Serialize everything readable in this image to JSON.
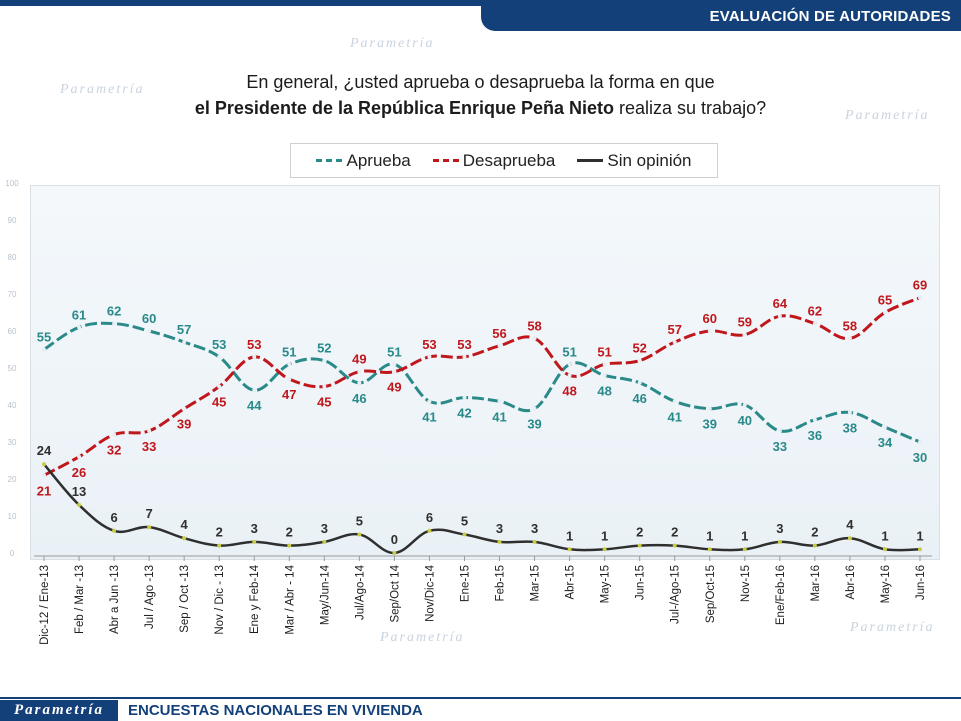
{
  "header": {
    "title": "EVALUACIÓN DE AUTORIDADES"
  },
  "question": {
    "line1": "En general, ¿usted aprueba o desaprueba la forma en que",
    "line2_bold": "el Presidente de la República Enrique Peña Nieto",
    "line2_rest": " realiza su trabajo?"
  },
  "footer": {
    "logo": "Parametría",
    "text": "ENCUESTAS NACIONALES  EN VIVIENDA"
  },
  "chart_data": {
    "type": "line",
    "categories": [
      "Dic-12 / Ene-13",
      "Feb / Mar -13",
      "Abr a Jun -13",
      "Jul / Ago -13",
      "Sep / Oct -13",
      "Nov / Dic - 13",
      "Ene y Feb-14",
      "Mar / Abr - 14",
      "May/Jun-14",
      "Jul/Ago-14",
      "Sep/Oct 14",
      "Nov/Dic-14",
      "Ene-15",
      "Feb-15",
      "Mar-15",
      "Abr-15",
      "May-15",
      "Jun-15",
      "Jul-/Ago-15",
      "Sep/Oct-15",
      "Nov-15",
      "Ene/Feb-16",
      "Mar-16",
      "Abr-16",
      "May-16",
      "Jun-16"
    ],
    "series": [
      {
        "name": "Aprueba",
        "color": "#2a8a8a",
        "values": [
          55,
          61,
          62,
          60,
          57,
          53,
          44,
          51,
          52,
          46,
          51,
          41,
          42,
          41,
          39,
          51,
          48,
          46,
          41,
          39,
          40,
          33,
          36,
          38,
          34,
          30
        ]
      },
      {
        "name": "Desaprueba",
        "color": "#c0171c",
        "values": [
          21,
          26,
          32,
          33,
          39,
          45,
          53,
          47,
          45,
          49,
          49,
          53,
          53,
          56,
          58,
          48,
          51,
          52,
          57,
          60,
          59,
          64,
          62,
          58,
          65,
          69
        ]
      },
      {
        "name": "Sin opinión",
        "color": "#2f2f2f",
        "values": [
          24,
          13,
          6,
          7,
          4,
          2,
          3,
          2,
          3,
          5,
          0,
          6,
          5,
          3,
          3,
          1,
          1,
          2,
          2,
          1,
          1,
          3,
          2,
          4,
          1,
          1
        ]
      }
    ],
    "ylim": [
      0,
      100
    ],
    "yticks": [
      0,
      10,
      20,
      30,
      40,
      50,
      60,
      70,
      80,
      90,
      100
    ],
    "legend": "top",
    "grid": false
  }
}
